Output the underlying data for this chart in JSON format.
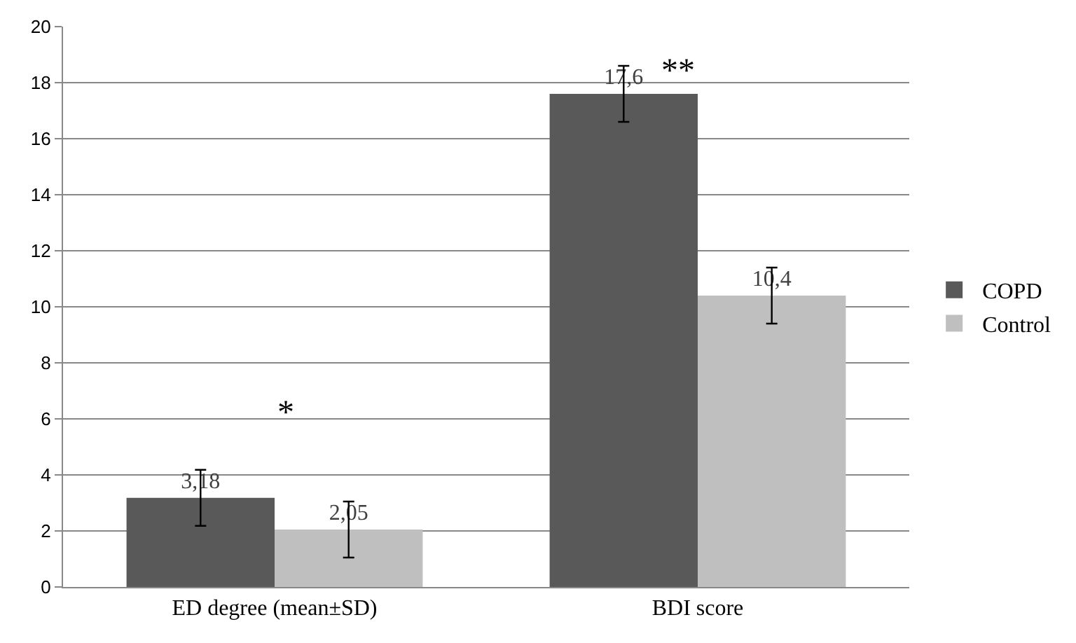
{
  "chart_data": {
    "type": "bar",
    "categories": [
      "ED degree (mean±SD)",
      "BDI score"
    ],
    "series": [
      {
        "name": "COPD",
        "color": "#595959",
        "values": [
          3.18,
          17.6
        ],
        "errors": [
          1,
          1
        ],
        "value_labels": [
          "3,18",
          "17,6"
        ]
      },
      {
        "name": "Control",
        "color": "#bfbfbf",
        "values": [
          2.05,
          10.4
        ],
        "errors": [
          1,
          1
        ],
        "value_labels": [
          "2,05",
          "10,4"
        ]
      }
    ],
    "annotations": [
      "*",
      "**"
    ],
    "ylim": [
      0,
      20
    ],
    "yticks": [
      0,
      2,
      4,
      6,
      8,
      10,
      12,
      14,
      16,
      18,
      20
    ],
    "grid": "y",
    "legend": "right"
  }
}
